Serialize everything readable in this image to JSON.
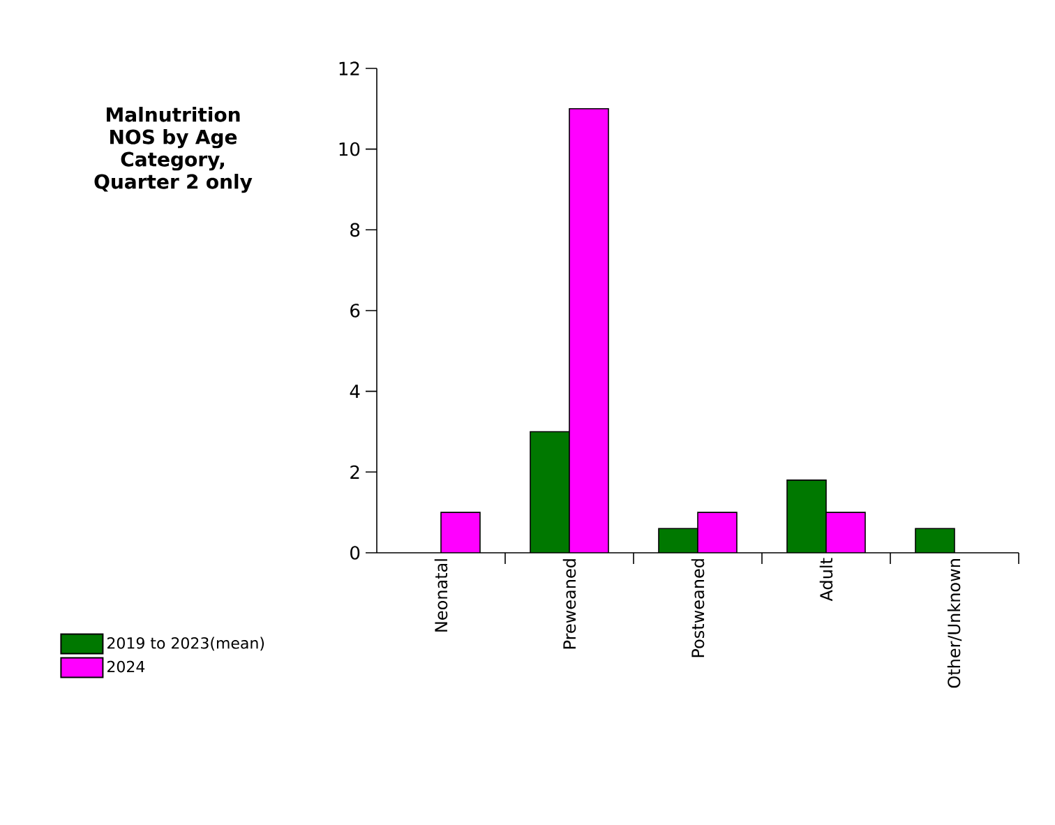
{
  "chart_data": {
    "type": "bar",
    "title": "Malnutrition NOS by Age Category, Quarter 2 only",
    "categories": [
      "Neonatal",
      "Preweaned",
      "Postweaned",
      "Adult",
      "Other/Unknown"
    ],
    "series": [
      {
        "name": "2019 to 2023(mean)",
        "color": "#007800",
        "values": [
          null,
          3,
          0.6,
          1.8,
          0.6
        ]
      },
      {
        "name": "2024",
        "color": "#ff00ff",
        "values": [
          1,
          11,
          1,
          1,
          null
        ]
      }
    ],
    "ylim": [
      0,
      12
    ],
    "yticks": [
      0,
      2,
      4,
      6,
      8,
      10,
      12
    ],
    "legend": "left",
    "grid": false
  }
}
